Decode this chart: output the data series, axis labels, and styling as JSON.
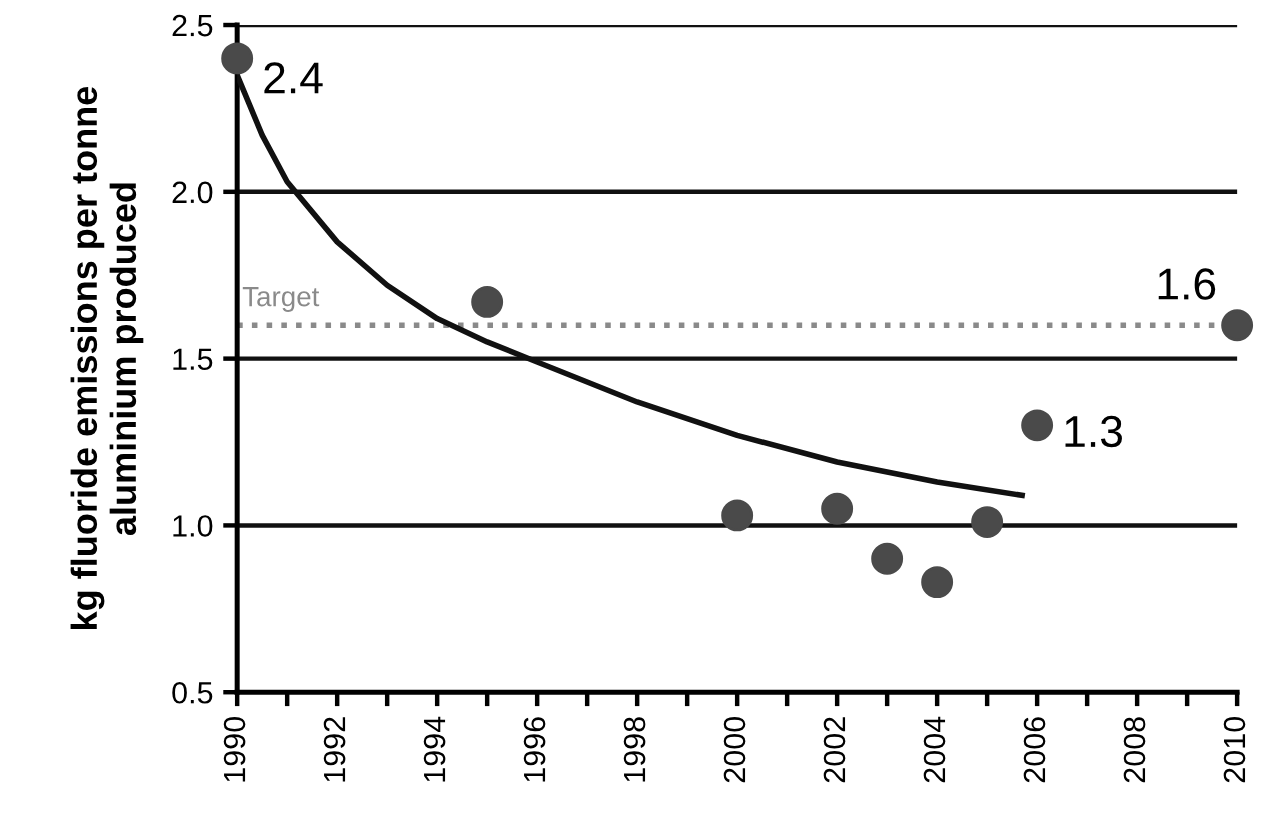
{
  "chart_data": {
    "type": "scatter",
    "ylabel": "kg fluoride emissions per tonne\naluminium produced",
    "series": [
      {
        "color": "#4a4a4a",
        "marker": "circle",
        "x": [
          1990,
          1995,
          2000,
          2002,
          2003,
          2004,
          2005,
          2006,
          2010
        ],
        "values": [
          2.4,
          1.67,
          1.03,
          1.05,
          0.9,
          0.83,
          1.01,
          1.3,
          1.6
        ],
        "value_labels": [
          "2.4",
          null,
          null,
          null,
          null,
          null,
          null,
          "1.3",
          "1.6"
        ]
      },
      {
        "type": "line",
        "color": "#111111",
        "marker": "none",
        "line_style": "solid",
        "x": [
          1990,
          1990.5,
          1991,
          1992,
          1993,
          1994,
          1995,
          1996,
          1998,
          2000,
          2002,
          2004,
          2005.7
        ],
        "values": [
          2.35,
          2.17,
          2.03,
          1.85,
          1.72,
          1.62,
          1.55,
          1.49,
          1.37,
          1.27,
          1.19,
          1.13,
          1.09
        ]
      }
    ],
    "ref_lines": [
      {
        "axis": "y",
        "value": 1.6,
        "label": "Target",
        "color": "#8a8a8a",
        "line_style": "dotted"
      }
    ],
    "xlim": [
      1990,
      2010
    ],
    "ylim": [
      0.5,
      2.5
    ],
    "xticks": [
      1990,
      {
        "value": 1991,
        "label": null
      },
      1992,
      {
        "value": 1993,
        "label": null
      },
      1994,
      {
        "value": 1995,
        "label": null
      },
      1996,
      {
        "value": 1997,
        "label": null
      },
      1998,
      {
        "value": 1999,
        "label": null
      },
      2000,
      {
        "value": 2001,
        "label": null
      },
      2002,
      {
        "value": 2003,
        "label": null
      },
      2004,
      {
        "value": 2005,
        "label": null
      },
      2006,
      {
        "value": 2007,
        "label": null
      },
      2008,
      {
        "value": 2009,
        "label": null
      },
      2010
    ],
    "yticks": [
      {
        "value": 0.5,
        "label": "0.5"
      },
      {
        "value": 1.0,
        "label": "1.0"
      },
      {
        "value": 1.5,
        "label": "1.5"
      },
      {
        "value": 2.0,
        "label": "2.0"
      },
      {
        "value": 2.5,
        "label": "2.5"
      }
    ],
    "grid": "y",
    "legend": false
  }
}
